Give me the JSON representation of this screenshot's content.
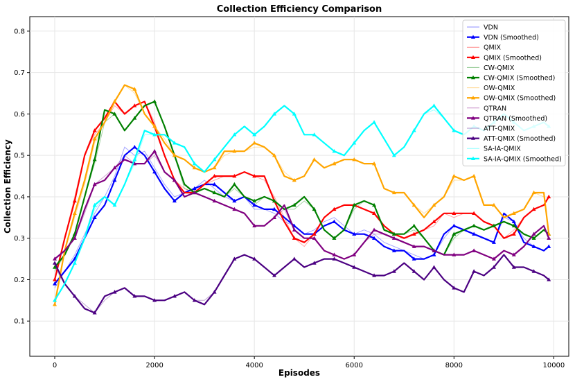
{
  "chart_data": {
    "type": "line",
    "title": "Collection Efficiency Comparison",
    "xlabel": "Episodes",
    "ylabel": "Collection Efficiency",
    "xlim": [
      -500,
      10300
    ],
    "ylim": [
      0.015,
      0.835
    ],
    "xticks": [
      0,
      2000,
      4000,
      6000,
      8000,
      10000
    ],
    "xtick_labels": [
      "0",
      "2000",
      "4000",
      "6000",
      "8000",
      "10000"
    ],
    "yticks": [
      0.1,
      0.2,
      0.3,
      0.4,
      0.5,
      0.6,
      0.7,
      0.8
    ],
    "ytick_labels": [
      "0.1",
      "0.2",
      "0.3",
      "0.4",
      "0.5",
      "0.6",
      "0.7",
      "0.8"
    ],
    "grid": true,
    "legend_position": "upper-right",
    "smoothed_x": [
      0,
      200,
      400,
      600,
      800,
      1000,
      1200,
      1400,
      1600,
      1800,
      2000,
      2200,
      2400,
      2600,
      2800,
      3000,
      3200,
      3400,
      3600,
      3800,
      4000,
      4200,
      4400,
      4600,
      4800,
      5000,
      5200,
      5400,
      5600,
      5800,
      6000,
      6200,
      6400,
      6600,
      6800,
      7000,
      7200,
      7400,
      7600,
      7800,
      8000,
      8200,
      8400,
      8600,
      8800,
      9000,
      9200,
      9400,
      9600,
      9800,
      9900
    ],
    "series": [
      {
        "name": "VDN",
        "kind": "raw",
        "color": "#0000ff",
        "values": [
          0.18,
          0.22,
          0.26,
          0.31,
          0.36,
          0.4,
          0.45,
          0.52,
          0.5,
          0.51,
          0.47,
          0.43,
          0.4,
          0.41,
          0.42,
          0.44,
          0.42,
          0.4,
          0.39,
          0.4,
          0.37,
          0.37,
          0.36,
          0.34,
          0.33,
          0.31,
          0.32,
          0.34,
          0.35,
          0.33,
          0.31,
          0.32,
          0.31,
          0.29,
          0.28,
          0.27,
          0.26,
          0.25,
          0.26,
          0.3,
          0.33,
          0.32,
          0.31,
          0.3,
          0.29,
          0.35,
          0.34,
          0.3,
          0.28,
          0.27,
          0.28
        ]
      },
      {
        "name": "VDN (Smoothed)",
        "kind": "smoothed",
        "color": "#0000ff",
        "values": [
          0.19,
          0.22,
          0.25,
          0.3,
          0.35,
          0.38,
          0.44,
          0.5,
          0.52,
          0.5,
          0.46,
          0.42,
          0.39,
          0.41,
          0.42,
          0.43,
          0.43,
          0.41,
          0.39,
          0.4,
          0.38,
          0.37,
          0.37,
          0.35,
          0.33,
          0.31,
          0.31,
          0.33,
          0.34,
          0.32,
          0.31,
          0.31,
          0.3,
          0.28,
          0.27,
          0.27,
          0.25,
          0.25,
          0.26,
          0.31,
          0.33,
          0.32,
          0.31,
          0.3,
          0.29,
          0.36,
          0.34,
          0.29,
          0.28,
          0.27,
          0.28
        ]
      },
      {
        "name": "QMIX",
        "kind": "raw",
        "color": "#ff0000",
        "values": [
          0.2,
          0.3,
          0.4,
          0.5,
          0.55,
          0.58,
          0.62,
          0.6,
          0.62,
          0.63,
          0.58,
          0.5,
          0.44,
          0.42,
          0.41,
          0.43,
          0.44,
          0.45,
          0.45,
          0.46,
          0.45,
          0.44,
          0.4,
          0.35,
          0.3,
          0.28,
          0.31,
          0.35,
          0.37,
          0.38,
          0.38,
          0.37,
          0.36,
          0.33,
          0.31,
          0.3,
          0.31,
          0.32,
          0.33,
          0.36,
          0.35,
          0.36,
          0.36,
          0.34,
          0.33,
          0.3,
          0.32,
          0.35,
          0.37,
          0.38,
          0.4
        ]
      },
      {
        "name": "QMIX (Smoothed)",
        "kind": "smoothed",
        "color": "#ff0000",
        "values": [
          0.2,
          0.3,
          0.39,
          0.5,
          0.56,
          0.59,
          0.63,
          0.6,
          0.62,
          0.63,
          0.57,
          0.5,
          0.44,
          0.41,
          0.41,
          0.43,
          0.45,
          0.45,
          0.45,
          0.46,
          0.45,
          0.45,
          0.39,
          0.34,
          0.3,
          0.29,
          0.31,
          0.35,
          0.37,
          0.38,
          0.38,
          0.37,
          0.36,
          0.33,
          0.31,
          0.3,
          0.31,
          0.32,
          0.34,
          0.36,
          0.36,
          0.36,
          0.36,
          0.34,
          0.33,
          0.3,
          0.31,
          0.35,
          0.37,
          0.38,
          0.4
        ]
      },
      {
        "name": "CW-QMIX",
        "kind": "raw",
        "color": "#008000",
        "values": [
          0.22,
          0.26,
          0.31,
          0.4,
          0.48,
          0.58,
          0.6,
          0.56,
          0.59,
          0.62,
          0.63,
          0.57,
          0.5,
          0.42,
          0.41,
          0.42,
          0.41,
          0.4,
          0.42,
          0.4,
          0.38,
          0.4,
          0.39,
          0.37,
          0.37,
          0.39,
          0.37,
          0.32,
          0.3,
          0.32,
          0.37,
          0.39,
          0.38,
          0.32,
          0.31,
          0.31,
          0.32,
          0.3,
          0.27,
          0.26,
          0.3,
          0.32,
          0.33,
          0.32,
          0.33,
          0.34,
          0.33,
          0.31,
          0.3,
          0.32,
          0.31
        ]
      },
      {
        "name": "CW-QMIX (Smoothed)",
        "kind": "smoothed",
        "color": "#008000",
        "values": [
          0.23,
          0.26,
          0.31,
          0.4,
          0.49,
          0.61,
          0.6,
          0.56,
          0.59,
          0.62,
          0.63,
          0.57,
          0.5,
          0.43,
          0.41,
          0.42,
          0.41,
          0.4,
          0.43,
          0.4,
          0.39,
          0.4,
          0.39,
          0.37,
          0.38,
          0.4,
          0.37,
          0.32,
          0.3,
          0.32,
          0.38,
          0.39,
          0.38,
          0.32,
          0.31,
          0.31,
          0.33,
          0.3,
          0.27,
          0.26,
          0.31,
          0.32,
          0.33,
          0.32,
          0.33,
          0.34,
          0.33,
          0.31,
          0.3,
          0.32,
          0.31
        ]
      },
      {
        "name": "OW-QMIX",
        "kind": "raw",
        "color": "#ffa500",
        "values": [
          0.15,
          0.27,
          0.35,
          0.43,
          0.53,
          0.58,
          0.63,
          0.67,
          0.65,
          0.6,
          0.57,
          0.54,
          0.5,
          0.49,
          0.47,
          0.46,
          0.47,
          0.5,
          0.51,
          0.51,
          0.52,
          0.52,
          0.5,
          0.46,
          0.44,
          0.45,
          0.49,
          0.47,
          0.48,
          0.49,
          0.49,
          0.48,
          0.48,
          0.42,
          0.41,
          0.41,
          0.38,
          0.36,
          0.38,
          0.4,
          0.44,
          0.44,
          0.45,
          0.38,
          0.38,
          0.35,
          0.36,
          0.37,
          0.41,
          0.4,
          0.31
        ]
      },
      {
        "name": "OW-QMIX (Smoothed)",
        "kind": "smoothed",
        "color": "#ffa500",
        "values": [
          0.14,
          0.27,
          0.36,
          0.44,
          0.54,
          0.58,
          0.63,
          0.67,
          0.66,
          0.6,
          0.57,
          0.53,
          0.5,
          0.49,
          0.47,
          0.46,
          0.47,
          0.51,
          0.51,
          0.51,
          0.53,
          0.52,
          0.5,
          0.45,
          0.44,
          0.45,
          0.49,
          0.47,
          0.48,
          0.49,
          0.49,
          0.48,
          0.48,
          0.42,
          0.41,
          0.41,
          0.38,
          0.35,
          0.38,
          0.4,
          0.45,
          0.44,
          0.45,
          0.38,
          0.38,
          0.35,
          0.36,
          0.37,
          0.41,
          0.41,
          0.31
        ]
      },
      {
        "name": "QTRAN",
        "kind": "raw",
        "color": "#800080",
        "values": [
          0.25,
          0.27,
          0.3,
          0.36,
          0.43,
          0.45,
          0.47,
          0.5,
          0.48,
          0.48,
          0.5,
          0.46,
          0.44,
          0.4,
          0.41,
          0.4,
          0.39,
          0.38,
          0.37,
          0.36,
          0.33,
          0.33,
          0.35,
          0.37,
          0.32,
          0.3,
          0.3,
          0.27,
          0.26,
          0.25,
          0.26,
          0.29,
          0.31,
          0.31,
          0.3,
          0.29,
          0.28,
          0.28,
          0.27,
          0.26,
          0.26,
          0.26,
          0.27,
          0.26,
          0.25,
          0.27,
          0.26,
          0.28,
          0.31,
          0.33,
          0.3
        ]
      },
      {
        "name": "QTRAN (Smoothed)",
        "kind": "smoothed",
        "color": "#800080",
        "values": [
          0.25,
          0.27,
          0.3,
          0.37,
          0.43,
          0.44,
          0.47,
          0.49,
          0.48,
          0.48,
          0.51,
          0.46,
          0.44,
          0.4,
          0.41,
          0.4,
          0.39,
          0.38,
          0.37,
          0.36,
          0.33,
          0.33,
          0.35,
          0.38,
          0.32,
          0.3,
          0.3,
          0.27,
          0.26,
          0.25,
          0.26,
          0.29,
          0.32,
          0.31,
          0.3,
          0.29,
          0.28,
          0.28,
          0.27,
          0.26,
          0.26,
          0.26,
          0.27,
          0.26,
          0.25,
          0.27,
          0.26,
          0.28,
          0.31,
          0.33,
          0.3
        ]
      },
      {
        "name": "ATT-QMIX",
        "kind": "raw",
        "color": "#4b0082",
        "values": [
          0.23,
          0.19,
          0.16,
          0.14,
          0.12,
          0.15,
          0.17,
          0.18,
          0.16,
          0.16,
          0.15,
          0.15,
          0.16,
          0.17,
          0.15,
          0.15,
          0.17,
          0.21,
          0.25,
          0.26,
          0.25,
          0.23,
          0.21,
          0.23,
          0.25,
          0.23,
          0.24,
          0.25,
          0.25,
          0.24,
          0.23,
          0.22,
          0.21,
          0.21,
          0.22,
          0.24,
          0.22,
          0.2,
          0.23,
          0.2,
          0.18,
          0.17,
          0.22,
          0.21,
          0.23,
          0.26,
          0.23,
          0.23,
          0.22,
          0.21,
          0.2
        ]
      },
      {
        "name": "ATT-QMIX (Smoothed)",
        "kind": "smoothed",
        "color": "#4b0082",
        "values": [
          0.24,
          0.19,
          0.16,
          0.13,
          0.12,
          0.16,
          0.17,
          0.18,
          0.16,
          0.16,
          0.15,
          0.15,
          0.16,
          0.17,
          0.15,
          0.14,
          0.17,
          0.21,
          0.25,
          0.26,
          0.25,
          0.23,
          0.21,
          0.23,
          0.25,
          0.23,
          0.24,
          0.25,
          0.25,
          0.24,
          0.23,
          0.22,
          0.21,
          0.21,
          0.22,
          0.24,
          0.22,
          0.2,
          0.23,
          0.2,
          0.18,
          0.17,
          0.22,
          0.21,
          0.23,
          0.26,
          0.23,
          0.23,
          0.22,
          0.21,
          0.2
        ]
      },
      {
        "name": "SA-IA-QMIX",
        "kind": "raw",
        "color": "#00ffff",
        "values": [
          0.15,
          0.19,
          0.24,
          0.3,
          0.37,
          0.4,
          0.38,
          0.43,
          0.48,
          0.55,
          0.55,
          0.55,
          0.53,
          0.52,
          0.48,
          0.46,
          0.49,
          0.52,
          0.55,
          0.57,
          0.55,
          0.57,
          0.6,
          0.62,
          0.6,
          0.55,
          0.55,
          0.53,
          0.51,
          0.5,
          0.53,
          0.56,
          0.58,
          0.54,
          0.5,
          0.52,
          0.56,
          0.6,
          0.61,
          0.59,
          0.56,
          0.55,
          0.57,
          0.56,
          0.58,
          0.6,
          0.58,
          0.56,
          0.57,
          0.58,
          0.57
        ]
      },
      {
        "name": "SA-IA-QMIX (Smoothed)",
        "kind": "smoothed",
        "color": "#00ffff",
        "values": [
          0.15,
          0.19,
          0.24,
          0.3,
          0.38,
          0.4,
          0.38,
          0.43,
          0.49,
          0.56,
          0.55,
          0.55,
          0.53,
          0.52,
          0.48,
          0.46,
          0.49,
          0.52,
          0.55,
          0.57,
          0.55,
          0.57,
          0.6,
          0.62,
          0.6,
          0.55,
          0.55,
          0.53,
          0.51,
          0.5,
          0.53,
          0.56,
          0.58,
          0.54,
          0.5,
          0.52,
          0.56,
          0.6,
          0.62,
          0.59,
          0.56,
          0.55,
          0.57,
          0.56,
          0.58,
          0.6,
          0.58,
          0.56,
          0.57,
          0.58,
          0.57
        ]
      }
    ]
  }
}
